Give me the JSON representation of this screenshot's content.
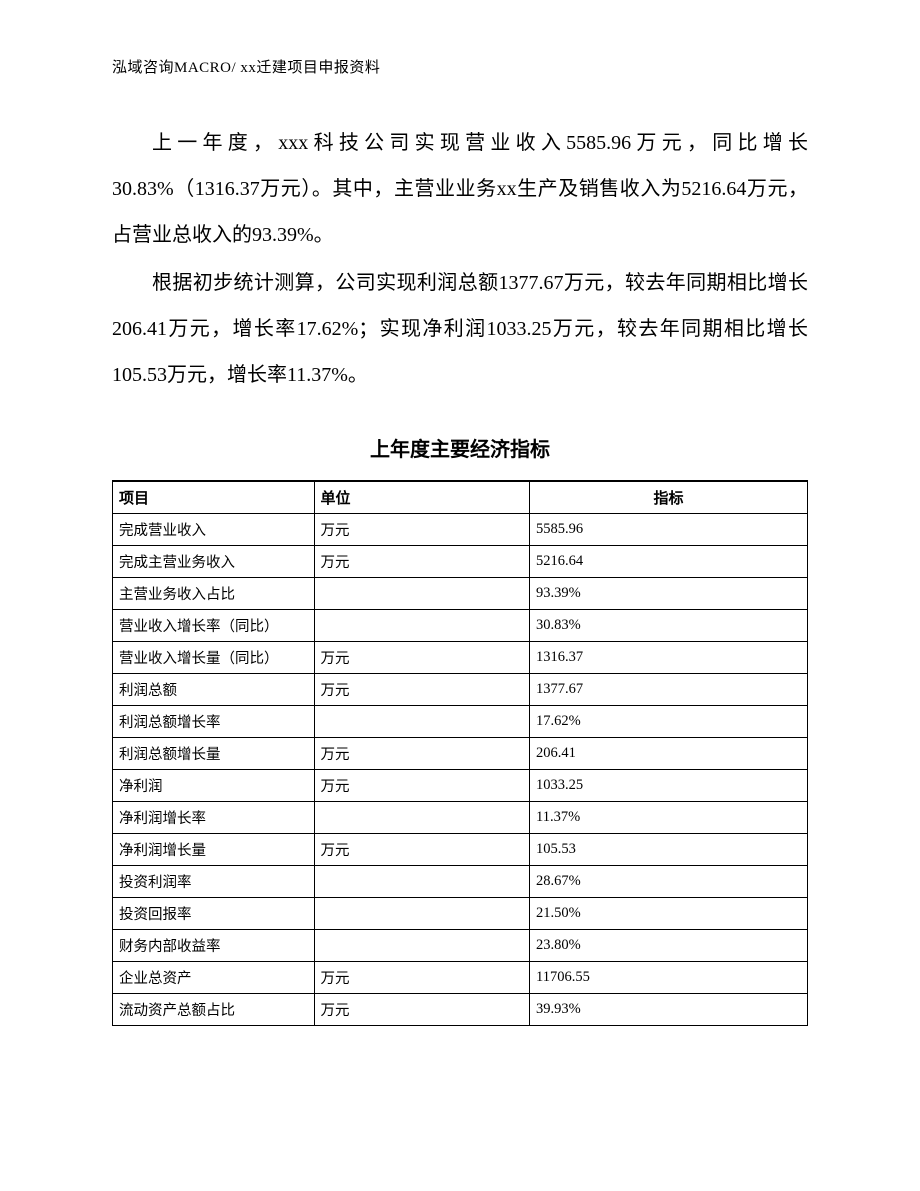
{
  "header": "泓域咨询MACRO/   xx迁建项目申报资料",
  "paragraph1": "上一年度，xxx科技公司实现营业收入5585.96万元，同比增长30.83%（1316.37万元）。其中，主营业业务xx生产及销售收入为5216.64万元，占营业总收入的93.39%。",
  "paragraph2": "根据初步统计测算，公司实现利润总额1377.67万元，较去年同期相比增长206.41万元，增长率17.62%；实现净利润1033.25万元，较去年同期相比增长105.53万元，增长率11.37%。",
  "table_title": "上年度主要经济指标",
  "columns": [
    "项目",
    "单位",
    "指标"
  ],
  "rows": [
    {
      "item": "完成营业收入",
      "unit": "万元",
      "value": "5585.96"
    },
    {
      "item": "完成主营业务收入",
      "unit": "万元",
      "value": "5216.64"
    },
    {
      "item": "主营业务收入占比",
      "unit": "",
      "value": "93.39%"
    },
    {
      "item": "营业收入增长率（同比）",
      "unit": "",
      "value": "30.83%"
    },
    {
      "item": "营业收入增长量（同比）",
      "unit": "万元",
      "value": "1316.37"
    },
    {
      "item": "利润总额",
      "unit": "万元",
      "value": "1377.67"
    },
    {
      "item": "利润总额增长率",
      "unit": "",
      "value": "17.62%"
    },
    {
      "item": "利润总额增长量",
      "unit": "万元",
      "value": "206.41"
    },
    {
      "item": "净利润",
      "unit": "万元",
      "value": "1033.25"
    },
    {
      "item": "净利润增长率",
      "unit": "",
      "value": "11.37%"
    },
    {
      "item": "净利润增长量",
      "unit": "万元",
      "value": "105.53"
    },
    {
      "item": "投资利润率",
      "unit": "",
      "value": "28.67%"
    },
    {
      "item": "投资回报率",
      "unit": "",
      "value": "21.50%"
    },
    {
      "item": "财务内部收益率",
      "unit": "",
      "value": "23.80%"
    },
    {
      "item": "企业总资产",
      "unit": "万元",
      "value": "11706.55"
    },
    {
      "item": "流动资产总额占比",
      "unit": "万元",
      "value": "39.93%"
    }
  ]
}
